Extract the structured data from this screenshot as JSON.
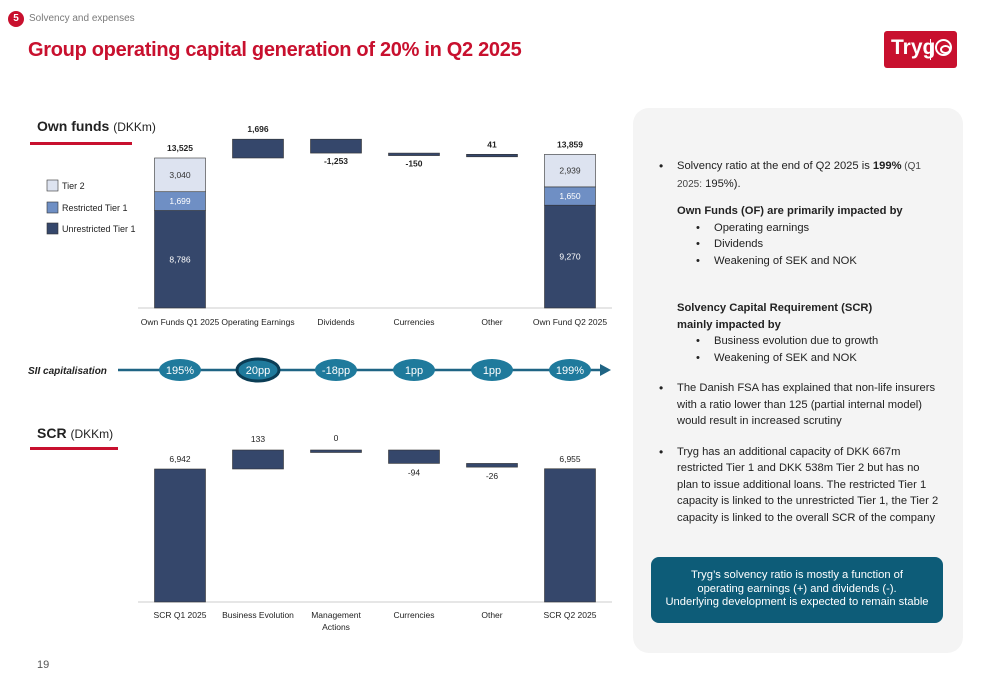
{
  "header": {
    "section_number": "5",
    "section_name": "Solvency and expenses",
    "title": "Group operating capital generation of 20% in Q2 2025",
    "logo_text": "Tryg"
  },
  "sections": {
    "own_funds_bold": "Own funds",
    "own_funds_unit": "(DKKm)",
    "scr_bold": "SCR",
    "scr_unit": "(DKKm)",
    "sii_label": "SII capitalisation"
  },
  "colors": {
    "accent": "#c8102e",
    "unrestricted_tier1": "#35476b",
    "restricted_tier1": "#6f8fc4",
    "tier2": "#dde3f0",
    "teal": "#0d5c78",
    "capital_ellipse": "#1f7a9c"
  },
  "chart_data": [
    {
      "type": "waterfall",
      "title": "Own funds (DKKm)",
      "categories": [
        "Own Funds Q1 2025",
        "Operating Earnings",
        "Dividends",
        "Currencies",
        "Other",
        "Own Fund Q2 2025"
      ],
      "legend": [
        "Tier 2",
        "Restricted Tier 1",
        "Unrestricted Tier 1"
      ],
      "totals": {
        "Own Funds Q1 2025": {
          "unrestricted_tier1": 8786,
          "restricted_tier1": 1699,
          "tier2": 3040,
          "total": 13525,
          "total_label": "13,525",
          "labels": [
            "8,786",
            "1,699",
            "3,040"
          ]
        },
        "Own Fund Q2 2025": {
          "unrestricted_tier1": 9270,
          "restricted_tier1": 1650,
          "tier2": 2939,
          "total": 13859,
          "total_label": "13,859",
          "labels": [
            "9,270",
            "1,650",
            "2,939"
          ]
        }
      },
      "changes": [
        {
          "category": "Operating Earnings",
          "value": 1696,
          "label": "1,696"
        },
        {
          "category": "Dividends",
          "value": -1253,
          "label": "-1,253"
        },
        {
          "category": "Currencies",
          "value": -150,
          "label": "-150"
        },
        {
          "category": "Other",
          "value": 41,
          "label": "41"
        }
      ]
    },
    {
      "type": "timeline",
      "title": "SII capitalisation",
      "points": [
        {
          "label": "195%",
          "highlight": false
        },
        {
          "label": "20pp",
          "highlight": true
        },
        {
          "label": "-18pp",
          "highlight": false
        },
        {
          "label": "1pp",
          "highlight": false
        },
        {
          "label": "1pp",
          "highlight": false
        },
        {
          "label": "199%",
          "highlight": false
        }
      ]
    },
    {
      "type": "waterfall",
      "title": "SCR (DKKm)",
      "categories": [
        "SCR Q1 2025",
        "Business Evolution",
        "Management Actions",
        "Currencies",
        "Other",
        "SCR Q2 2025"
      ],
      "totals": {
        "SCR Q1 2025": {
          "total": 6942,
          "total_label": "6,942"
        },
        "SCR Q2 2025": {
          "total": 6955,
          "total_label": "6,955"
        }
      },
      "changes": [
        {
          "category": "Business Evolution",
          "value": 133,
          "label": "133"
        },
        {
          "category": "Management Actions",
          "value": 0,
          "label": "0"
        },
        {
          "category": "Currencies",
          "value": -94,
          "label": "-94"
        },
        {
          "category": "Other",
          "value": -26,
          "label": "-26"
        }
      ]
    }
  ],
  "panel": {
    "b1_text": "Solvency ratio at the end of Q2 2025  is ",
    "b1_bold": "199%",
    "b1_small": " (Q1 2025:",
    "b1_tail": " 195%).",
    "of_heading": "Own Funds (OF) are primarily impacted by",
    "of_items": [
      "Operating earnings",
      "Dividends",
      "Weakening of SEK and NOK"
    ],
    "scr_heading_1": "Solvency Capital Requirement (SCR)",
    "scr_heading_2": "mainly impacted by",
    "scr_items": [
      "Business evolution due to growth",
      "Weakening of SEK and NOK"
    ],
    "b2": "The Danish FSA has explained that non-life insurers with a ratio lower than 125 (partial internal model) would result in increased scrutiny",
    "b3": "Tryg has an additional capacity of DKK 667m restricted Tier 1 and DKK 538m Tier 2 but has no plan to issue additional loans. The restricted Tier 1 capacity is linked to the unrestricted Tier 1, the Tier 2 capacity is linked to the overall SCR of the company"
  },
  "callout": {
    "line1": "Tryg’s solvency ratio is mostly a function of",
    "line2": "operating earnings  (+) and dividends (-).",
    "line3": "Underlying development is expected to remain stable"
  },
  "footer": {
    "page_number": "19"
  }
}
